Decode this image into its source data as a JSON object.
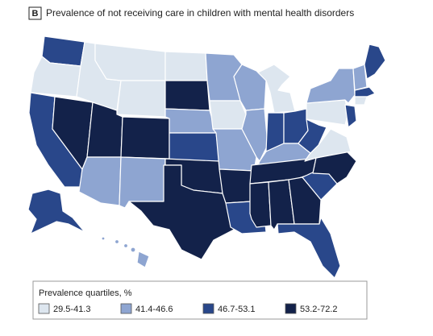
{
  "panel_label": "B",
  "title": "Prevalence of not receiving care in children with mental health disorders",
  "legend": {
    "title": "Prevalence quartiles, %",
    "items": [
      {
        "label": "29.5-41.3",
        "color": "#dde6ef"
      },
      {
        "label": "41.4-46.6",
        "color": "#8ea5d1"
      },
      {
        "label": "46.7-53.1",
        "color": "#29478a"
      },
      {
        "label": "53.2-72.2",
        "color": "#13224a"
      }
    ]
  }
}
